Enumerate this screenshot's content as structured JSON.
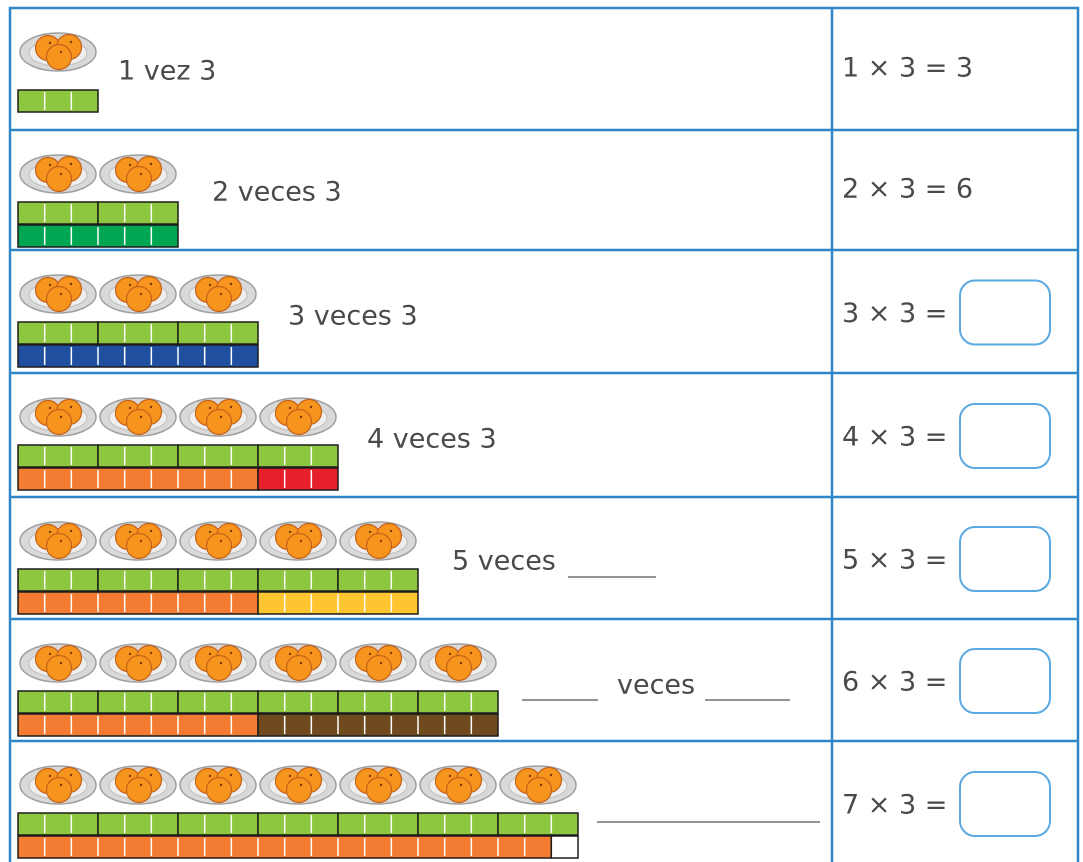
{
  "rows": [
    {
      "label": "1 vez 3",
      "equation": "1 × 3 = 3"
    },
    {
      "label": "2 veces 3",
      "equation": "2 × 3 = 6"
    },
    {
      "label": "3 veces 3",
      "equation": "3 × 3 ="
    },
    {
      "label": "4 veces 3",
      "equation": "4 × 3 ="
    },
    {
      "label": "5 veces",
      "equation": "5 × 3 ="
    },
    {
      "label": "veces",
      "equation": "6 × 3 ="
    },
    {
      "equation": "7 × 3 ="
    }
  ]
}
